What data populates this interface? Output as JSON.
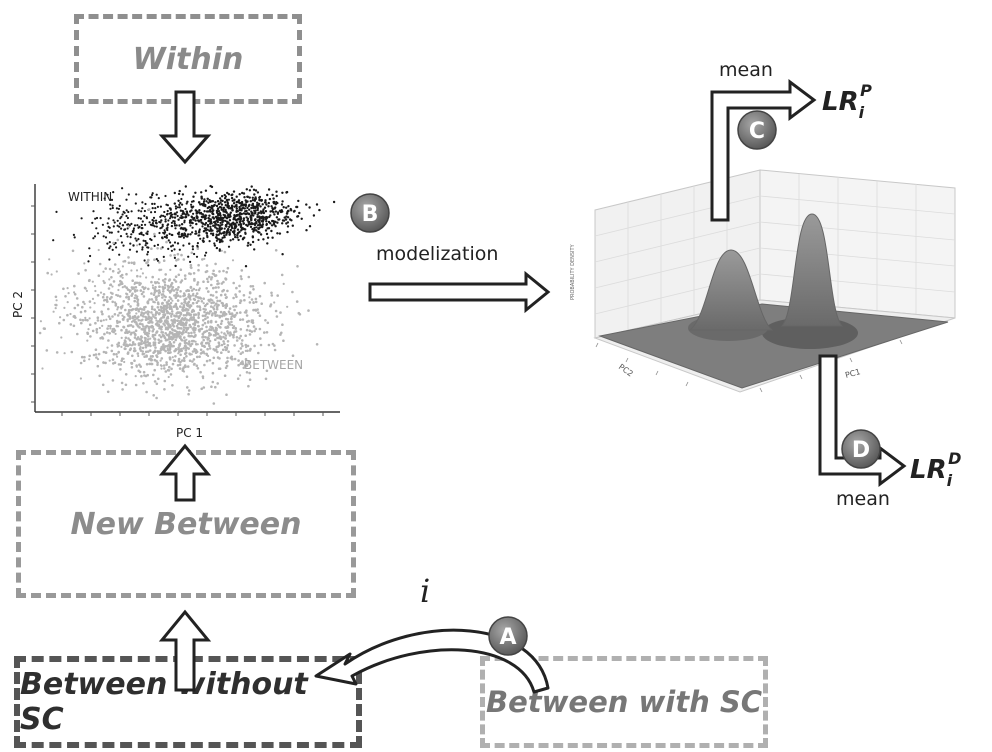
{
  "boxes": {
    "within": "Within",
    "new_between": "New Between",
    "between_without_sc": "Between without SC",
    "between_with_sc": "Between with SC"
  },
  "scatter": {
    "within_label": "WITHIN",
    "between_label": "BETWEEN",
    "x_axis_label": "PC 1",
    "y_axis_label": "PC 2"
  },
  "steps": {
    "a": "A",
    "b": "B",
    "c": "C",
    "d": "D"
  },
  "step_text": {
    "modelization": "modelization",
    "mean_top": "mean",
    "mean_bottom": "mean",
    "iteration": "i"
  },
  "outputs": {
    "lr_p_base": "LR",
    "lr_p_sub": "i",
    "lr_p_sup": "P",
    "lr_d_base": "LR",
    "lr_d_sub": "i",
    "lr_d_sup": "D"
  },
  "surface_plot": {
    "x_axis_label": "PC1",
    "y_axis_label": "PC2",
    "z_axis_label": "PROBABILITY DENSITY"
  },
  "colors": {
    "within_points": "#1a1a1a",
    "between_points": "#b5b5b5",
    "badge_fill": "#6d6d6d",
    "surface": "#7a7a7a"
  }
}
